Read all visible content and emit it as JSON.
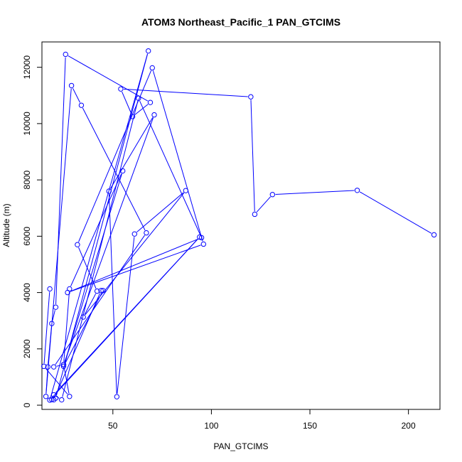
{
  "chart_data": {
    "type": "line",
    "title": "ATOM3 Northeast_Pacific_1 PAN_GTCIMS",
    "xlabel": "PAN_GTCIMS",
    "ylabel": "Altitude (m)",
    "xlim": [
      14,
      216
    ],
    "ylim": [
      -150,
      12900
    ],
    "xticks": [
      50,
      100,
      150,
      200
    ],
    "yticks": [
      0,
      2000,
      4000,
      6000,
      8000,
      10000,
      12000
    ],
    "markers": "open-circle",
    "color": "#0000ff",
    "series": [
      {
        "x": [
          213,
          174,
          131,
          122,
          120,
          54,
          60,
          69,
          26,
          21,
          19,
          17,
          16,
          29,
          34,
          67,
          20,
          25,
          28,
          55,
          25,
          45,
          44,
          20,
          19,
          21,
          68,
          18,
          94,
          20,
          24,
          63,
          95,
          27,
          96,
          70,
          32,
          42,
          35,
          87,
          61,
          52,
          48,
          71,
          25,
          28,
          15,
          18
        ],
        "y": [
          6050,
          7630,
          7480,
          6780,
          10950,
          11230,
          10250,
          10750,
          12460,
          3480,
          2900,
          1360,
          310,
          11350,
          10650,
          6120,
          1360,
          1440,
          4130,
          8320,
          1380,
          4070,
          4070,
          190,
          200,
          250,
          12580,
          180,
          5970,
          370,
          190,
          10900,
          5950,
          4000,
          5720,
          11980,
          5700,
          4050,
          3130,
          7620,
          6080,
          300,
          7600,
          10310,
          1440,
          310,
          1380,
          4130
        ]
      }
    ]
  }
}
